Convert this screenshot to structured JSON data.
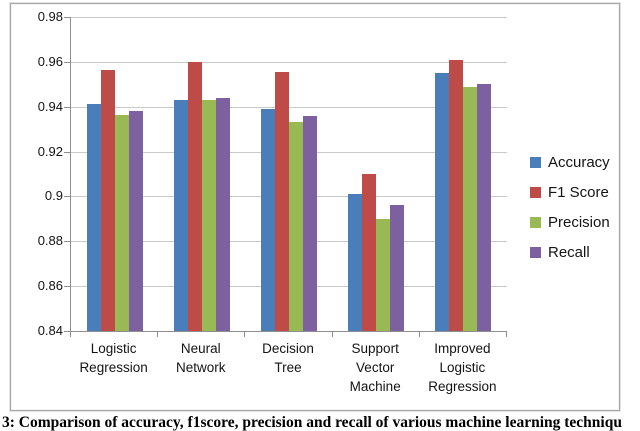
{
  "chart_data": {
    "type": "bar",
    "title": "",
    "categories": [
      "Logistic\nRegression",
      "Neural\nNetwork",
      "Decision\nTree",
      "Support\nVector\nMachine",
      "Improved\nLogistic\nRegression"
    ],
    "series": [
      {
        "name": "Accuracy",
        "color": "#4A7EBB",
        "values": [
          0.941,
          0.943,
          0.939,
          0.901,
          0.955
        ]
      },
      {
        "name": "F1 Score",
        "color": "#BE4B48",
        "values": [
          0.9565,
          0.96,
          0.9555,
          0.91,
          0.961
        ]
      },
      {
        "name": "Precision",
        "color": "#98B954",
        "values": [
          0.9365,
          0.943,
          0.933,
          0.89,
          0.949
        ]
      },
      {
        "name": "Recall",
        "color": "#7D60A0",
        "values": [
          0.938,
          0.944,
          0.936,
          0.896,
          0.95
        ]
      }
    ],
    "ylim": [
      0.84,
      0.98
    ],
    "ytick_step": 0.02,
    "ytick_labels": [
      "0.98",
      "0.96",
      "0.94",
      "0.92",
      "0.9",
      "0.88",
      "0.86",
      "0.84"
    ],
    "xlabel": "",
    "ylabel": "",
    "grid": true,
    "legend_position": "right"
  },
  "colors": {
    "gridline": "#C9C9C9",
    "axis": "#8F8F8F",
    "chart_border": "#A6A6A6",
    "background": "#FFFFFF"
  },
  "caption": {
    "text": "3: Comparison of accuracy, f1score, precision and recall of various machine learning techniqu"
  }
}
